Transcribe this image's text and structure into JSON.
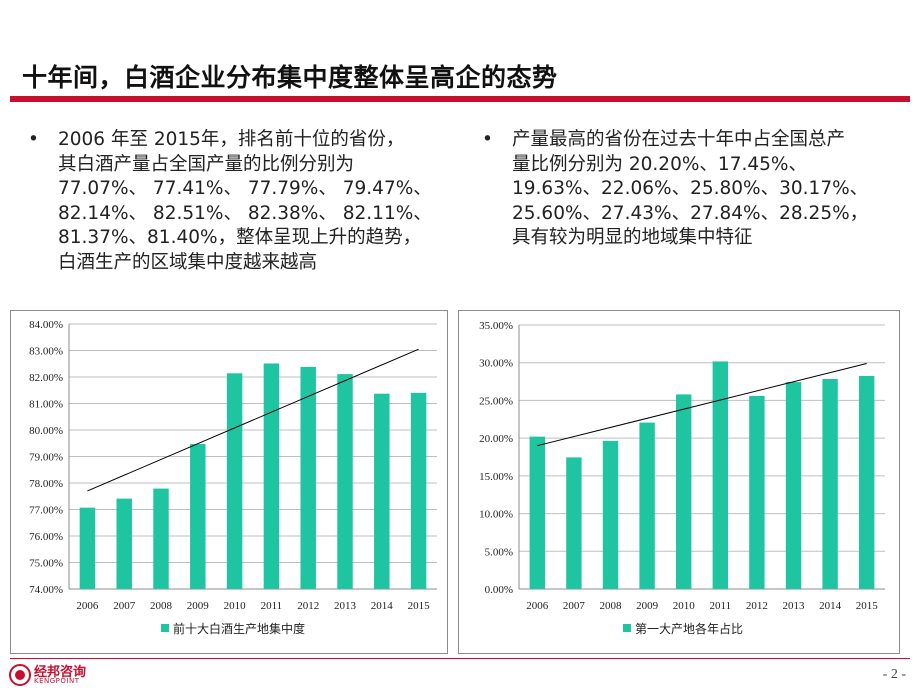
{
  "slide": {
    "title": "十年间，白酒企业分布集中度整体呈高企的态势",
    "page_number": "- 2 -",
    "logo_cn": "经邦咨询",
    "logo_en": "KENGPOINT"
  },
  "bullets": {
    "left": {
      "marker": "•",
      "text": "2006 年至 2015年，排名前十位的省份，\n其白酒产量占全国产量的比例分别为\n77.07%、 77.41%、 77.79%、 79.47%、\n82.14%、 82.51%、 82.38%、 82.11%、\n81.37%、81.40%，整体呈现上升的趋势，\n白酒生产的区域集中度越来越高"
    },
    "right": {
      "marker": "•",
      "text": "产量最高的省份在过去十年中占全国总产\n量比例分别为 20.20%、17.45%、\n19.63%、22.06%、25.80%、30.17%、\n25.60%、27.43%、27.84%、28.25%，\n具有较为明显的地域集中特征"
    }
  },
  "chart_data": [
    {
      "type": "bar",
      "categories": [
        "2006",
        "2007",
        "2008",
        "2009",
        "2010",
        "2011",
        "2012",
        "2013",
        "2014",
        "2015"
      ],
      "series": [
        {
          "name": "前十大白酒生产地集中度",
          "values": [
            77.07,
            77.41,
            77.79,
            79.47,
            82.14,
            82.51,
            82.38,
            82.11,
            81.37,
            81.4
          ],
          "color": "#1fc4a0"
        }
      ],
      "trendline": {
        "start": 77.7,
        "end": 83.05,
        "color": "#000000"
      },
      "ylim": [
        74,
        84
      ],
      "ytick_step": 1,
      "ytick_decimals": 2,
      "ytick_suffix": "%",
      "grid": true,
      "gridline_color": "#bfbfbf",
      "legend_position": "bottom"
    },
    {
      "type": "bar",
      "categories": [
        "2006",
        "2007",
        "2008",
        "2009",
        "2010",
        "2011",
        "2012",
        "2013",
        "2014",
        "2015"
      ],
      "series": [
        {
          "name": "第一大产地各年占比",
          "values": [
            20.2,
            17.45,
            19.63,
            22.06,
            25.8,
            30.17,
            25.6,
            27.43,
            27.84,
            28.25
          ],
          "color": "#1fc4a0"
        }
      ],
      "trendline": {
        "start": 19.0,
        "end": 29.9,
        "color": "#000000"
      },
      "ylim": [
        0,
        35
      ],
      "ytick_step": 5,
      "ytick_decimals": 2,
      "ytick_suffix": "%",
      "grid": true,
      "gridline_color": "#bfbfbf",
      "legend_position": "bottom"
    }
  ]
}
